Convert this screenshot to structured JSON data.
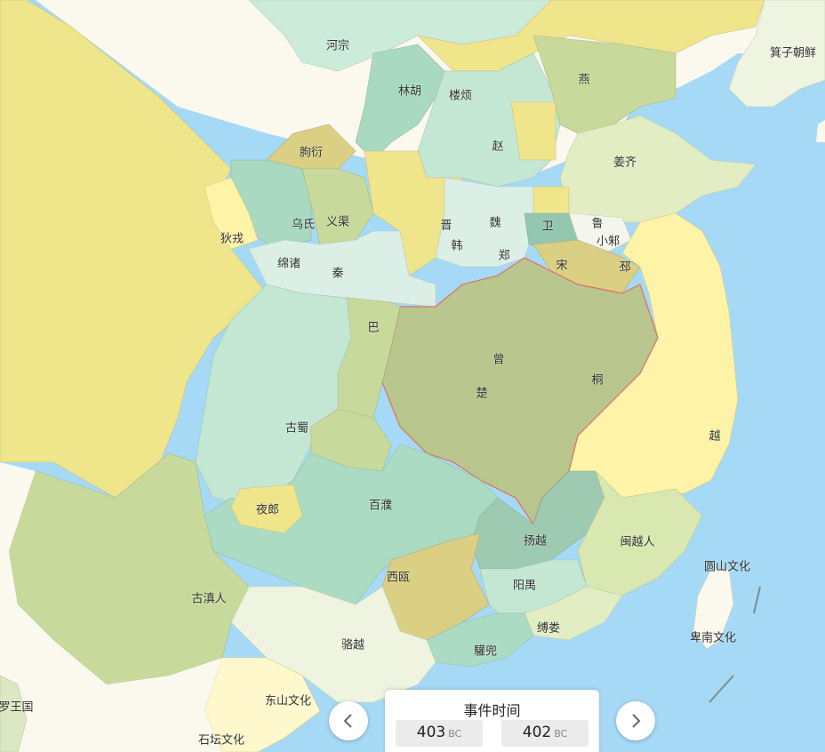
{
  "map": {
    "labels": [
      {
        "id": "hezong",
        "text": "河宗"
      },
      {
        "id": "linhu",
        "text": "林胡"
      },
      {
        "id": "loufan",
        "text": "楼烦"
      },
      {
        "id": "yan",
        "text": "燕"
      },
      {
        "id": "jizi",
        "text": "箕子朝鲜"
      },
      {
        "id": "quyan",
        "text": "朐衍"
      },
      {
        "id": "zhao",
        "text": "赵"
      },
      {
        "id": "jiangqi",
        "text": "姜齐"
      },
      {
        "id": "wushi",
        "text": "乌氏"
      },
      {
        "id": "yiqu",
        "text": "义渠"
      },
      {
        "id": "dirong",
        "text": "狄戎"
      },
      {
        "id": "jin",
        "text": "晋"
      },
      {
        "id": "wei",
        "text": "魏"
      },
      {
        "id": "wei2",
        "text": "卫"
      },
      {
        "id": "lu",
        "text": "鲁"
      },
      {
        "id": "han",
        "text": "韩"
      },
      {
        "id": "xiaozhu",
        "text": "小邾"
      },
      {
        "id": "mianzhu",
        "text": "绵诸"
      },
      {
        "id": "qin",
        "text": "秦"
      },
      {
        "id": "zheng",
        "text": "郑"
      },
      {
        "id": "song",
        "text": "宋"
      },
      {
        "id": "pi",
        "text": "邳"
      },
      {
        "id": "ba",
        "text": "巴"
      },
      {
        "id": "zeng",
        "text": "曾"
      },
      {
        "id": "tong",
        "text": "桐"
      },
      {
        "id": "chu",
        "text": "楚"
      },
      {
        "id": "gushu",
        "text": "古蜀"
      },
      {
        "id": "yue",
        "text": "越"
      },
      {
        "id": "yelang",
        "text": "夜郎"
      },
      {
        "id": "baipu",
        "text": "百濮"
      },
      {
        "id": "yangyue",
        "text": "扬越"
      },
      {
        "id": "minyue",
        "text": "闽越人"
      },
      {
        "id": "yuanshan",
        "text": "圆山文化"
      },
      {
        "id": "gudian",
        "text": "古滇人"
      },
      {
        "id": "xiou",
        "text": "西瓯"
      },
      {
        "id": "yangyu",
        "text": "阳禺"
      },
      {
        "id": "fulou",
        "text": "缚娄"
      },
      {
        "id": "beinan",
        "text": "卑南文化"
      },
      {
        "id": "luoyue",
        "text": "骆越"
      },
      {
        "id": "lidou",
        "text": "驩兜"
      },
      {
        "id": "luowang",
        "text": "罗王国"
      },
      {
        "id": "dongshan",
        "text": "东山文化"
      },
      {
        "id": "shitan",
        "text": "石坛文化"
      }
    ]
  },
  "timeline": {
    "title": "事件时间",
    "start_year": "403",
    "start_era": "BC",
    "end_year": "402",
    "end_era": "BC"
  },
  "colors": {
    "sea": "#a6d9f5",
    "chu_fill": "#b9c68e",
    "chu_border": "#e07060"
  }
}
